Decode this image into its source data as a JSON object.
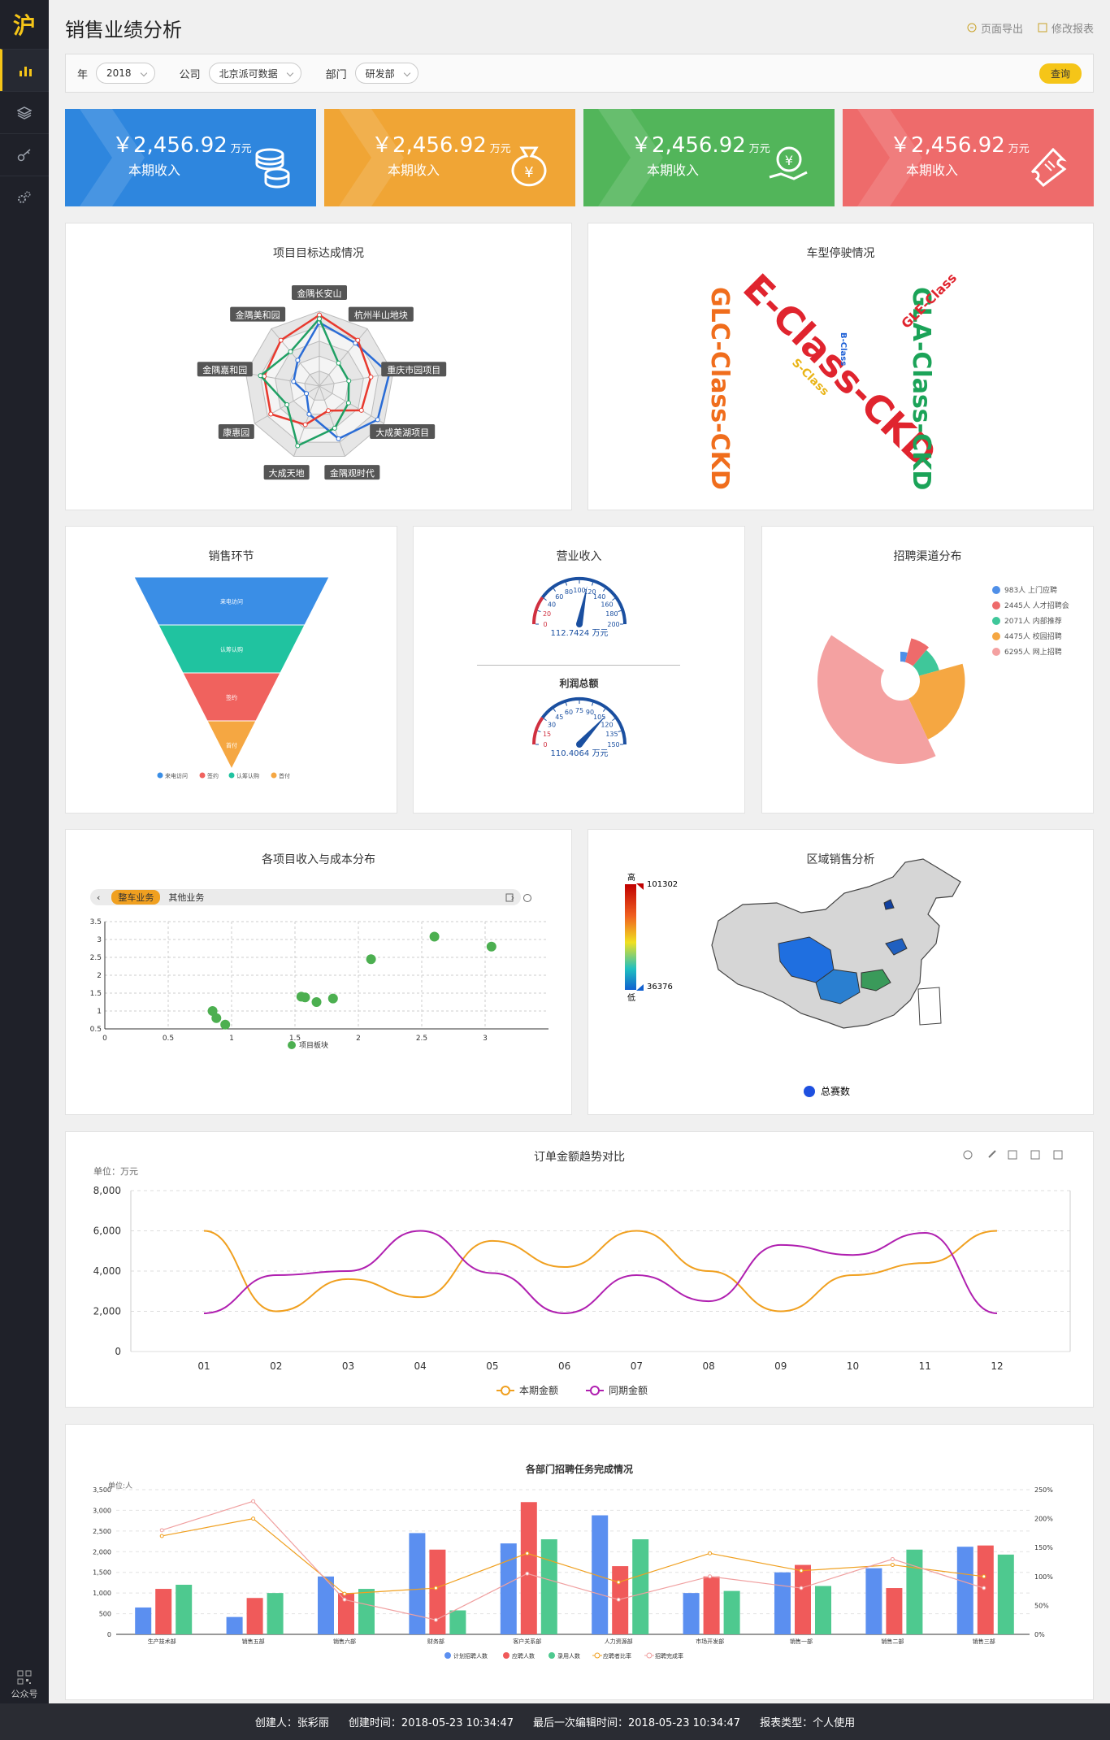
{
  "sidebar": {
    "logo": "沪",
    "qr_label": "公众号"
  },
  "header": {
    "title": "销售业绩分析",
    "export_label": "页面导出",
    "edit_label": "修改报表"
  },
  "filters": {
    "year_label": "年",
    "year_value": "2018",
    "company_label": "公司",
    "company_value": "北京派可数据",
    "dept_label": "部门",
    "dept_value": "研发部",
    "query_label": "查询"
  },
  "kpis": [
    {
      "value": "￥2,456.92",
      "unit": "万元",
      "label": "本期收入",
      "color": "#2e86de",
      "icon": "coins-icon"
    },
    {
      "value": "￥2,456.92",
      "unit": "万元",
      "label": "本期收入",
      "color": "#f0a535",
      "icon": "money-bag-icon"
    },
    {
      "value": "￥2,456.92",
      "unit": "万元",
      "label": "本期收入",
      "color": "#52b55a",
      "icon": "hand-coin-icon"
    },
    {
      "value": "￥2,456.92",
      "unit": "万元",
      "label": "本期收入",
      "color": "#ee6b6b",
      "icon": "ticket-icon"
    }
  ],
  "cards": {
    "radar_title": "项目目标达成情况",
    "wordcloud_title": "车型停驶情况",
    "funnel_title": "销售环节",
    "gauge_title": "营业收入",
    "gauge2_title": "利润总额",
    "donut_title": "招聘渠道分布",
    "scatter_title": "各项目收入与成本分布",
    "map_title": "区域销售分析",
    "line_title": "订单金额趋势对比",
    "bar_title": "各部门招聘任务完成情况"
  },
  "wordcloud": {
    "words": [
      {
        "text": "E-Class-CKD",
        "color": "#e0242e"
      },
      {
        "text": "GLC-Class-CKD",
        "color": "#f06d1c"
      },
      {
        "text": "GLA-Class-CKD",
        "color": "#1ba358"
      },
      {
        "text": "GLE-Class",
        "color": "#e0242e"
      },
      {
        "text": "S-Class",
        "color": "#e9b416"
      },
      {
        "text": "B-Class",
        "color": "#1c5fd6"
      }
    ]
  },
  "map": {
    "high_label": "高",
    "low_label": "低",
    "max": "101302",
    "min": "36376",
    "legend": "总赛数"
  },
  "scatter": {
    "tabs": [
      "整车业务",
      "其他业务"
    ]
  },
  "line": {
    "unit": "单位：万元"
  },
  "bar": {
    "unit": "单位:人"
  },
  "footer": {
    "creator": "创建人：张彩丽",
    "created": "创建时间：2018-05-23 10:34:47",
    "edited": "最后一次编辑时间：2018-05-23 10:34:47",
    "type": "报表类型：个人使用"
  },
  "chart_data": [
    {
      "type": "radar",
      "title": "项目目标达成情况",
      "indicators": [
        "金隅长安山",
        "杭州半山地块",
        "重庆市园项目",
        "大成美湖项目",
        "金隅观时代",
        "大成天地",
        "康惠园",
        "金隅嘉和园",
        "金隅美和园"
      ],
      "series": [
        {
          "color": "#2a6cd6",
          "values": [
            0.85,
            0.75,
            0.95,
            0.9,
            0.75,
            0.4,
            0.2,
            0.35,
            0.45
          ]
        },
        {
          "color": "#e8392e",
          "values": [
            0.95,
            0.8,
            0.7,
            0.65,
            0.35,
            0.55,
            0.75,
            0.75,
            0.8
          ]
        },
        {
          "color": "#20a064",
          "values": [
            0.9,
            0.4,
            0.4,
            0.45,
            0.6,
            0.85,
            0.5,
            0.8,
            0.6
          ]
        }
      ]
    },
    {
      "type": "funnel",
      "title": "销售环节",
      "stages": [
        "来电访问",
        "认筹认购",
        "签约",
        "首付"
      ],
      "values": [
        100,
        75,
        50,
        25
      ],
      "colors": [
        "#3a8ee6",
        "#20c3a0",
        "#f0625e",
        "#f5a742"
      ],
      "legend": [
        "来电访问",
        "签约",
        "认筹认购",
        "首付"
      ],
      "legend_colors": [
        "#3a8ee6",
        "#f0625e",
        "#20c3a0",
        "#f5a742"
      ]
    },
    {
      "type": "gauge",
      "title": "营业收入",
      "min": 0,
      "max": 200,
      "value": 112.7424,
      "value_text": "112.7424 万元",
      "ticks": [
        0,
        20,
        40,
        60,
        80,
        100,
        120,
        140,
        160,
        180,
        200
      ]
    },
    {
      "type": "gauge",
      "title": "利润总额",
      "min": 0,
      "max": 150,
      "value": 110.4064,
      "value_text": "110.4064 万元",
      "ticks": [
        0,
        15,
        30,
        45,
        60,
        75,
        90,
        105,
        120,
        135,
        150
      ]
    },
    {
      "type": "pie",
      "title": "招聘渠道分布",
      "slices": [
        {
          "name": "983人  上门应聘",
          "value": 983,
          "color": "#4f8fe8"
        },
        {
          "name": "2445人  人才招聘会",
          "value": 2445,
          "color": "#ee6b6b"
        },
        {
          "name": "2071人  内部推荐",
          "value": 2071,
          "color": "#3fc79a"
        },
        {
          "name": "4475人  校园招聘",
          "value": 4475,
          "color": "#f5a742"
        },
        {
          "name": "6295人  网上招聘",
          "value": 6295,
          "color": "#f4a1a1"
        }
      ]
    },
    {
      "type": "scatter",
      "title": "各项目收入与成本分布",
      "series_name": "项目板块",
      "xlim": [
        0,
        3.5
      ],
      "ylim": [
        0.5,
        3.5
      ],
      "xticks": [
        "0",
        "0.5",
        "1",
        "1.5",
        "2",
        "2.5",
        "3"
      ],
      "yticks": [
        "0.5",
        "1",
        "1.5",
        "2",
        "2.5",
        "3",
        "3.5"
      ],
      "points": [
        [
          0.85,
          1.0
        ],
        [
          0.88,
          0.8
        ],
        [
          0.95,
          0.62
        ],
        [
          1.55,
          1.4
        ],
        [
          1.58,
          1.38
        ],
        [
          1.67,
          1.25
        ],
        [
          1.8,
          1.35
        ],
        [
          2.1,
          2.45
        ],
        [
          2.6,
          3.08
        ],
        [
          3.05,
          2.8
        ]
      ]
    },
    {
      "type": "line",
      "title": "订单金额趋势对比",
      "ylabel": "单位：万元",
      "ylim": [
        0,
        8000
      ],
      "yticks": [
        "0",
        "2,000",
        "4,000",
        "6,000",
        "8,000"
      ],
      "categories": [
        "01",
        "02",
        "03",
        "04",
        "05",
        "06",
        "07",
        "08",
        "09",
        "10",
        "11",
        "12"
      ],
      "series": [
        {
          "name": "本期金额",
          "color": "#f0a020",
          "values": [
            6000,
            2000,
            3600,
            2700,
            5500,
            4200,
            6000,
            4000,
            2000,
            3800,
            4400,
            6000
          ]
        },
        {
          "name": "同期金额",
          "color": "#b020b0",
          "values": [
            1900,
            3800,
            4000,
            6000,
            3900,
            1900,
            3800,
            2500,
            5300,
            4800,
            5900,
            1900
          ]
        }
      ]
    },
    {
      "type": "bar",
      "title": "各部门招聘任务完成情况",
      "ylabel": "单位:人",
      "ylim": [
        0,
        3500
      ],
      "yticks": [
        "0",
        "500",
        "1,000",
        "1,500",
        "2,000",
        "2,500",
        "3,000",
        "3,500"
      ],
      "y2ticks": [
        "0%",
        "50%",
        "100%",
        "150%",
        "200%",
        "250%"
      ],
      "categories": [
        "生产技术部",
        "销售五部",
        "销售六部",
        "财务部",
        "客户关系部",
        "人力资源部",
        "市场开发部",
        "销售一部",
        "销售二部",
        "销售三部"
      ],
      "series": [
        {
          "name": "计划招聘人数",
          "color": "#5b8ff0",
          "values": [
            650,
            420,
            1400,
            2450,
            2200,
            2880,
            1000,
            1500,
            1600,
            2120
          ]
        },
        {
          "name": "应聘人数",
          "color": "#f05a5a",
          "values": [
            1100,
            880,
            1000,
            2050,
            3200,
            1650,
            1400,
            1680,
            1120,
            2150
          ]
        },
        {
          "name": "录用人数",
          "color": "#4ec98f",
          "values": [
            1200,
            1000,
            1100,
            580,
            2300,
            2300,
            1050,
            1170,
            2050,
            1930
          ]
        }
      ],
      "lines": [
        {
          "name": "应聘者比率",
          "color": "#f0a020",
          "values": [
            170,
            200,
            70,
            80,
            140,
            90,
            140,
            110,
            120,
            100
          ]
        },
        {
          "name": "招聘完成率",
          "color": "#f0a0a0",
          "values": [
            180,
            230,
            60,
            25,
            105,
            60,
            100,
            80,
            130,
            80
          ]
        }
      ]
    }
  ]
}
